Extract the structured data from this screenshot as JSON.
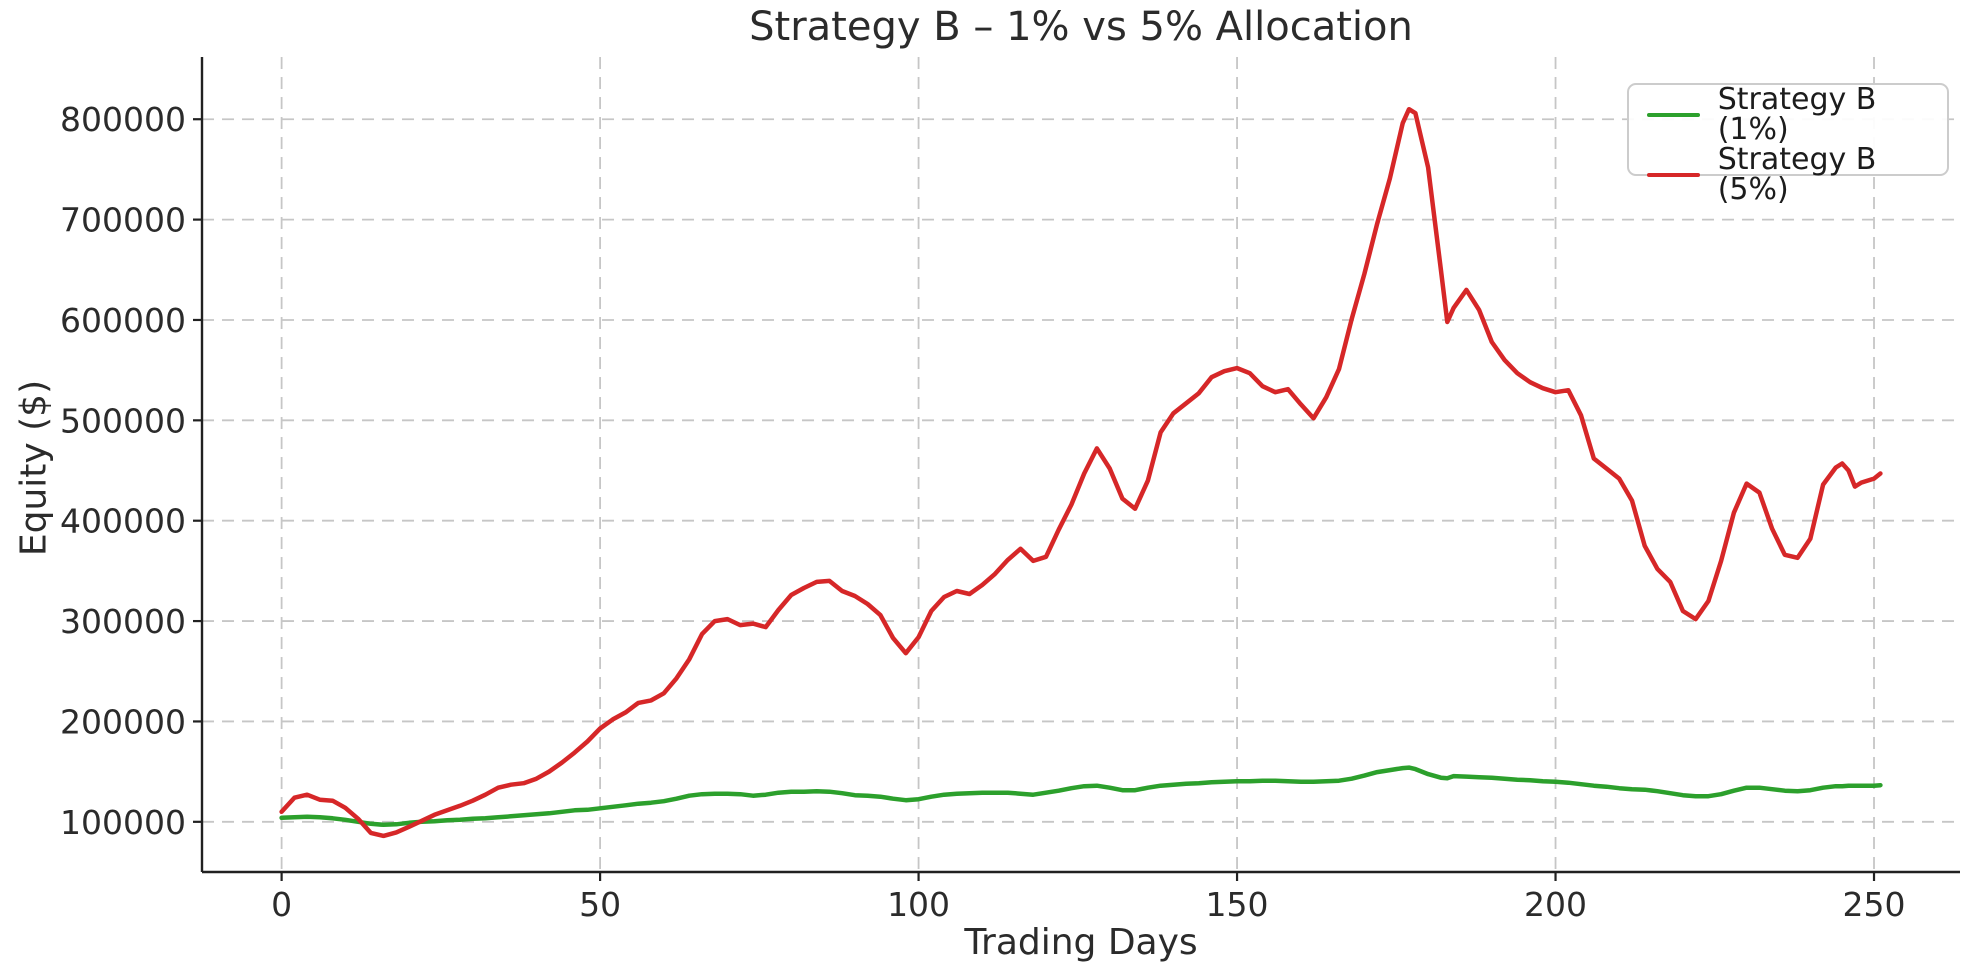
{
  "chart_data": {
    "type": "line",
    "title": "Strategy B – 1% vs 5% Allocation",
    "xlabel": "Trading Days",
    "ylabel": "Equity ($)",
    "xlim": [
      -12.5,
      263.5
    ],
    "ylim": [
      50000,
      862000
    ],
    "x_ticks": [
      0,
      50,
      100,
      150,
      200,
      250
    ],
    "y_ticks": [
      100000,
      200000,
      300000,
      400000,
      500000,
      600000,
      700000,
      800000
    ],
    "grid": true,
    "grid_style": "dashed",
    "legend_position": "upper right",
    "x": [
      0,
      2,
      4,
      6,
      8,
      10,
      12,
      14,
      16,
      18,
      20,
      22,
      24,
      26,
      28,
      30,
      32,
      34,
      36,
      38,
      40,
      42,
      44,
      46,
      48,
      50,
      52,
      54,
      56,
      58,
      60,
      62,
      64,
      66,
      68,
      70,
      72,
      74,
      76,
      78,
      80,
      82,
      84,
      86,
      88,
      90,
      92,
      94,
      96,
      98,
      100,
      102,
      104,
      106,
      108,
      110,
      112,
      114,
      116,
      118,
      120,
      122,
      124,
      126,
      128,
      130,
      132,
      134,
      136,
      138,
      140,
      142,
      144,
      146,
      148,
      150,
      152,
      154,
      156,
      158,
      160,
      162,
      164,
      166,
      168,
      170,
      172,
      174,
      176,
      177,
      178,
      180,
      182,
      183,
      184,
      186,
      188,
      190,
      192,
      194,
      196,
      198,
      200,
      202,
      204,
      206,
      208,
      210,
      212,
      214,
      216,
      218,
      220,
      222,
      224,
      226,
      228,
      230,
      232,
      234,
      236,
      238,
      240,
      242,
      244,
      245,
      246,
      247,
      248,
      250,
      251
    ],
    "series": [
      {
        "name": "Strategy B (1%)",
        "color": "#2ca02c",
        "values": [
          104000,
          104500,
          105000,
          104500,
          103500,
          102000,
          100000,
          98000,
          97000,
          97500,
          99000,
          100000,
          100500,
          101500,
          102000,
          103000,
          103500,
          104500,
          105500,
          106500,
          107500,
          108500,
          110000,
          111500,
          112000,
          113500,
          115000,
          116500,
          118000,
          119000,
          120500,
          123000,
          126000,
          127500,
          128000,
          128000,
          127500,
          126000,
          127000,
          129000,
          130000,
          130000,
          130500,
          130000,
          128500,
          126500,
          126000,
          125000,
          123000,
          121500,
          122500,
          125000,
          127000,
          128000,
          128500,
          129000,
          129000,
          129000,
          128000,
          127000,
          129000,
          131000,
          133500,
          135500,
          136000,
          134000,
          131500,
          131500,
          134000,
          136000,
          137000,
          138000,
          138500,
          139500,
          140000,
          140500,
          140500,
          141000,
          141000,
          140500,
          140000,
          140000,
          140500,
          141000,
          143000,
          146000,
          149500,
          151500,
          153500,
          154000,
          152500,
          147500,
          144000,
          143500,
          145500,
          145000,
          144500,
          144000,
          143000,
          142000,
          141500,
          140500,
          140000,
          139000,
          137500,
          136000,
          135000,
          133500,
          132500,
          132000,
          130500,
          128500,
          126500,
          125500,
          125500,
          127500,
          131000,
          134000,
          134000,
          132500,
          131000,
          130500,
          131500,
          134000,
          135500,
          135500,
          136000,
          136000,
          136000,
          136000,
          136500
        ]
      },
      {
        "name": "Strategy B (5%)",
        "color": "#d62728",
        "values": [
          110000,
          124000,
          127000,
          122000,
          121000,
          114000,
          103000,
          89000,
          86000,
          89500,
          95000,
          101000,
          107000,
          111500,
          116000,
          121000,
          127000,
          134000,
          137000,
          138500,
          143000,
          150000,
          159000,
          169000,
          180000,
          193000,
          202000,
          209000,
          218500,
          221000,
          228000,
          243000,
          262000,
          287000,
          300000,
          302000,
          296000,
          297500,
          294000,
          311000,
          326000,
          333000,
          339000,
          340000,
          330000,
          325000,
          317000,
          306000,
          283000,
          268000,
          284000,
          310000,
          324000,
          330000,
          327000,
          336000,
          347000,
          361000,
          372000,
          360000,
          364000,
          391000,
          416000,
          447000,
          472000,
          452000,
          422000,
          412000,
          440000,
          488000,
          507000,
          517000,
          527000,
          543000,
          549000,
          552000,
          547000,
          534000,
          528000,
          531000,
          516000,
          502000,
          523000,
          551000,
          601000,
          646000,
          696000,
          741000,
          796000,
          810000,
          806000,
          752000,
          650000,
          598000,
          612000,
          630000,
          610000,
          578000,
          560000,
          547000,
          538000,
          532000,
          528000,
          530000,
          505000,
          462000,
          452000,
          442000,
          420000,
          375000,
          352000,
          339000,
          310000,
          302000,
          320000,
          360000,
          408000,
          437000,
          428000,
          392000,
          366000,
          363000,
          382000,
          436000,
          453000,
          457000,
          450000,
          434000,
          438000,
          442000,
          447000
        ]
      }
    ]
  }
}
